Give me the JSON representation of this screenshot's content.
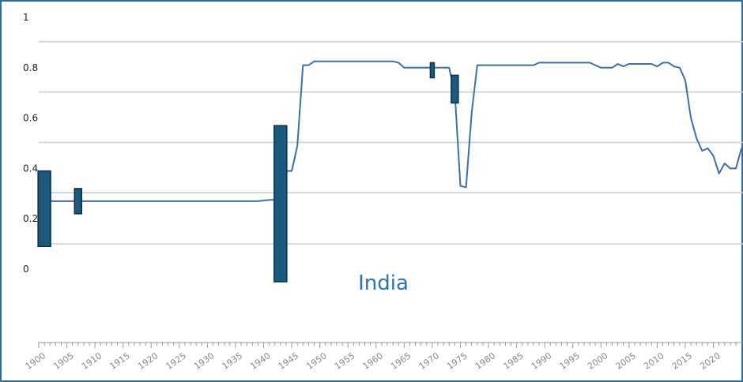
{
  "chart_data": {
    "type": "line",
    "title": "",
    "annotation": "India",
    "xlabel": "",
    "ylabel": "",
    "xlim": [
      1900,
      2024
    ],
    "ylim": [
      0,
      1
    ],
    "y_ticks": [
      "0",
      "0.2",
      "0.4",
      "0.6",
      "0.8",
      "1"
    ],
    "x_ticks": [
      "1900",
      "1905",
      "1910",
      "1915",
      "1920",
      "1925",
      "1930",
      "1935",
      "1940",
      "1945",
      "1950",
      "1955",
      "1960",
      "1965",
      "1970",
      "1975",
      "1980",
      "1985",
      "1990",
      "1995",
      "2000",
      "2005",
      "2010",
      "2015",
      "2020"
    ],
    "grid": true,
    "line_color": "#3d6fa6",
    "bar_color": "#1b5a7e",
    "series": [
      {
        "values": [
          [
            1900,
            0.27
          ],
          [
            1939,
            0.27
          ],
          [
            1941,
            0.275
          ],
          [
            1943,
            0.275
          ],
          [
            1944,
            0.39
          ],
          [
            1945,
            0.39
          ],
          [
            1946,
            0.49
          ],
          [
            1947,
            0.81
          ],
          [
            1948,
            0.81
          ],
          [
            1949,
            0.825
          ],
          [
            1963,
            0.825
          ],
          [
            1964,
            0.82
          ],
          [
            1965,
            0.8
          ],
          [
            1973,
            0.8
          ],
          [
            1974,
            0.7
          ],
          [
            1975,
            0.33
          ],
          [
            1976,
            0.325
          ],
          [
            1977,
            0.62
          ],
          [
            1978,
            0.81
          ],
          [
            1988,
            0.81
          ],
          [
            1989,
            0.82
          ],
          [
            1998,
            0.82
          ],
          [
            1999,
            0.81
          ],
          [
            2000,
            0.8
          ],
          [
            2002,
            0.8
          ],
          [
            2003,
            0.815
          ],
          [
            2004,
            0.805
          ],
          [
            2005,
            0.815
          ],
          [
            2009,
            0.815
          ],
          [
            2010,
            0.805
          ],
          [
            2011,
            0.82
          ],
          [
            2012,
            0.82
          ],
          [
            2013,
            0.805
          ],
          [
            2014,
            0.8
          ],
          [
            2015,
            0.75
          ],
          [
            2016,
            0.6
          ],
          [
            2017,
            0.52
          ],
          [
            2018,
            0.47
          ],
          [
            2019,
            0.48
          ],
          [
            2020,
            0.45
          ],
          [
            2021,
            0.38
          ],
          [
            2022,
            0.42
          ],
          [
            2023,
            0.4
          ],
          [
            2024,
            0.4
          ],
          [
            2025,
            0.48
          ]
        ]
      }
    ],
    "intervals": [
      {
        "x": 1901,
        "low": 0.09,
        "high": 0.39
      },
      {
        "x": 1907,
        "low": 0.22,
        "high": 0.32
      },
      {
        "x": 1943,
        "low": -0.05,
        "high": 0.57
      },
      {
        "x": 1970,
        "low": 0.76,
        "high": 0.82
      },
      {
        "x": 1974,
        "low": 0.66,
        "high": 0.77
      }
    ]
  }
}
